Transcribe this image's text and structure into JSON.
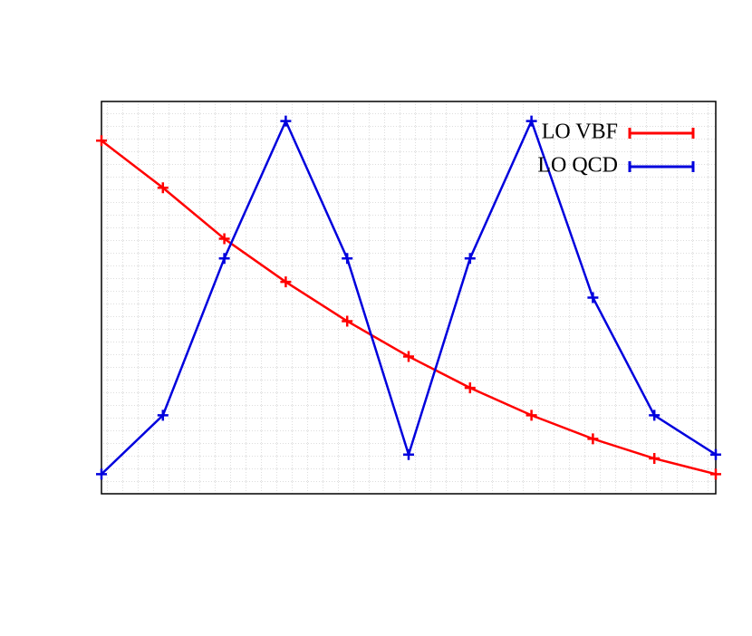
{
  "chart_data": {
    "type": "line",
    "x": [
      0,
      0.1,
      0.2,
      0.3,
      0.4,
      0.5,
      0.6,
      0.7,
      0.8,
      0.9,
      1
    ],
    "xlim": [
      0,
      1
    ],
    "ylim": [
      0,
      1
    ],
    "legend": "top-right",
    "series": [
      {
        "name": "LO VBF",
        "color": "#ff0000",
        "values": [
          0.9,
          0.78,
          0.65,
          0.54,
          0.44,
          0.35,
          0.27,
          0.2,
          0.14,
          0.09,
          0.05
        ]
      },
      {
        "name": "LO QCD",
        "color": "#0000dd",
        "values": [
          0.05,
          0.2,
          0.6,
          0.95,
          0.6,
          0.1,
          0.6,
          0.95,
          0.5,
          0.2,
          0.1
        ]
      }
    ]
  }
}
